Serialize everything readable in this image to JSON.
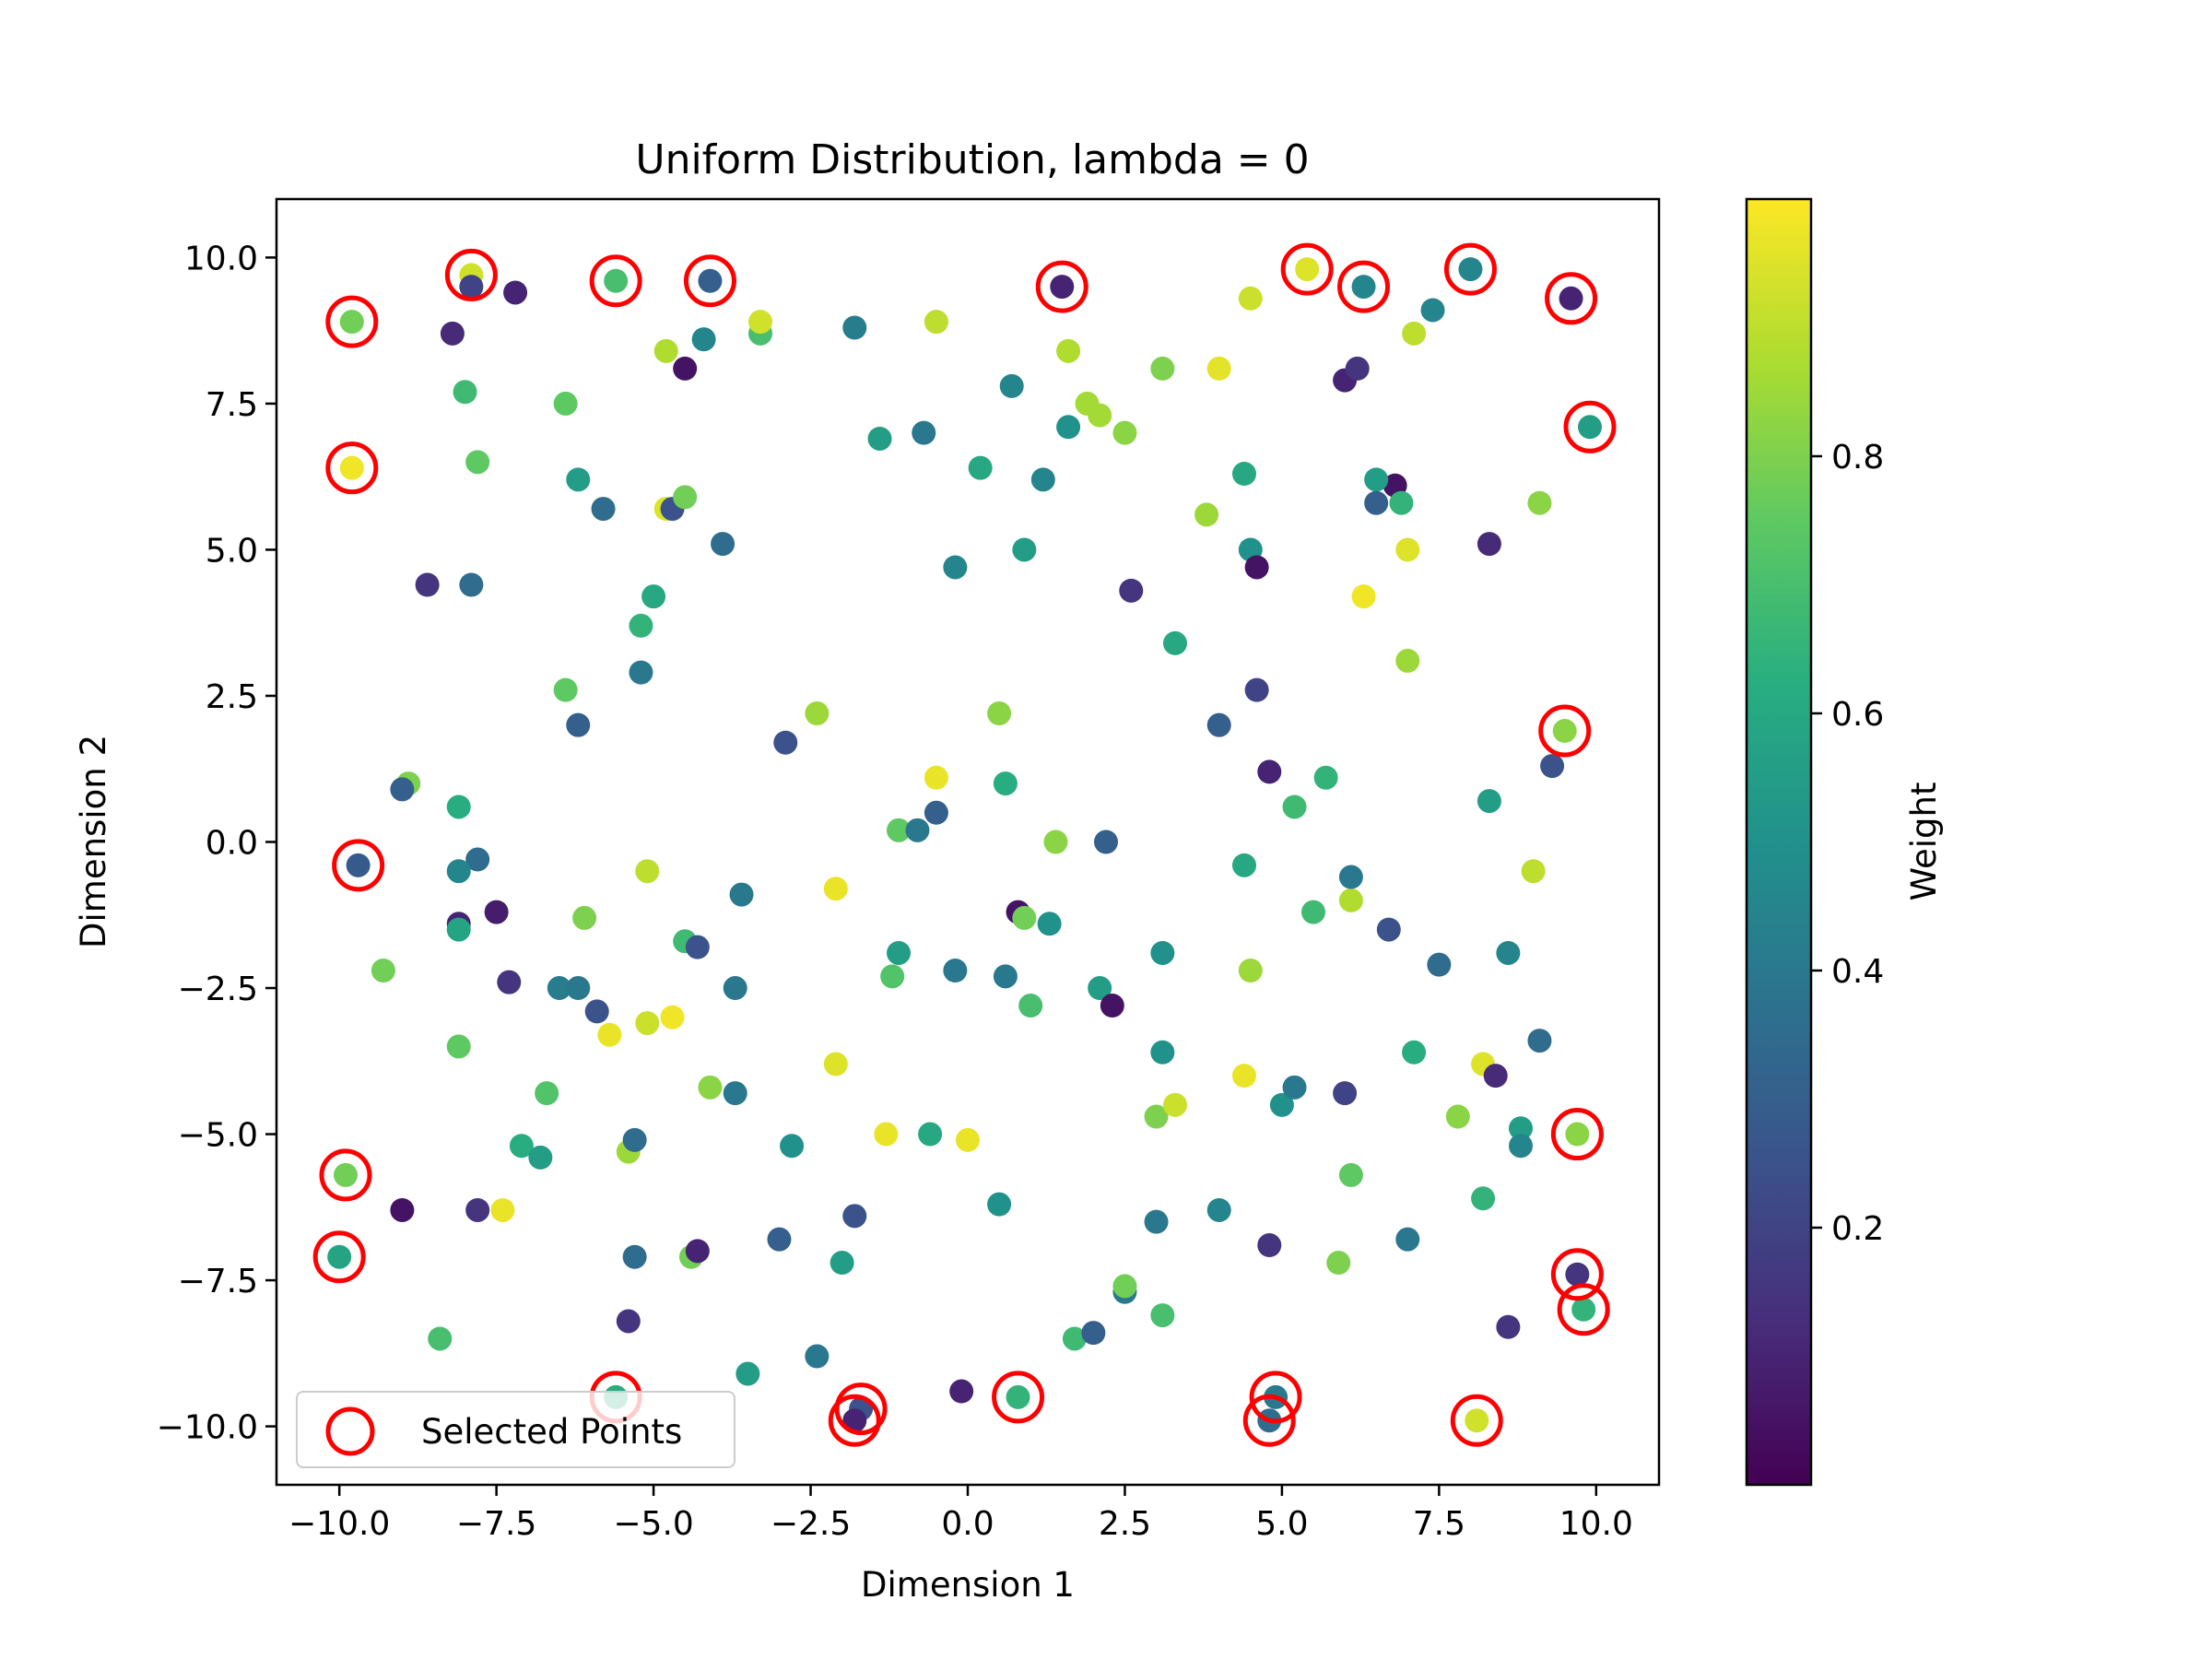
{
  "chart_data": {
    "type": "scatter",
    "title": "Uniform Distribution, lambda = 0",
    "xlabel": "Dimension 1",
    "ylabel": "Dimension 2",
    "xlim": [
      -11,
      11
    ],
    "ylim": [
      -11,
      11
    ],
    "x_ticks": [
      -10,
      -7.5,
      -5,
      -2.5,
      0,
      2.5,
      5,
      7.5,
      10
    ],
    "x_tick_labels": [
      "−10.0",
      "−7.5",
      "−5.0",
      "−2.5",
      "0.0",
      "2.5",
      "5.0",
      "7.5",
      "10.0"
    ],
    "y_ticks": [
      10,
      7.5,
      5,
      2.5,
      0,
      -2.5,
      -5,
      -7.5,
      -10
    ],
    "y_tick_labels": [
      "10.0",
      "7.5",
      "5.0",
      "2.5",
      "0.0",
      "−2.5",
      "−5.0",
      "−7.5",
      "−10.0"
    ],
    "grid": false,
    "colormap": "viridis",
    "colorbar": {
      "label": "Weight",
      "range": [
        0,
        1
      ],
      "ticks": [
        0.2,
        0.4,
        0.6,
        0.8
      ],
      "tick_labels": [
        "0.2",
        "0.4",
        "0.6",
        "0.8"
      ]
    },
    "legend": {
      "entries": [
        "Selected Points"
      ],
      "position": "lower-left"
    },
    "selected_color": "#ff0000",
    "points": [
      [
        -9.8,
        8.9,
        0.78
      ],
      [
        -7.9,
        9.7,
        0.93
      ],
      [
        -5.6,
        9.6,
        0.7
      ],
      [
        -4.1,
        9.6,
        0.3
      ],
      [
        1.5,
        9.5,
        0.1
      ],
      [
        5.4,
        9.8,
        0.95
      ],
      [
        6.3,
        9.5,
        0.45
      ],
      [
        8.0,
        9.8,
        0.45
      ],
      [
        9.6,
        9.3,
        0.1
      ],
      [
        9.9,
        7.1,
        0.55
      ],
      [
        -9.8,
        6.4,
        0.98
      ],
      [
        9.5,
        1.9,
        0.82
      ],
      [
        -9.7,
        -0.4,
        0.28
      ],
      [
        -9.9,
        -5.7,
        0.78
      ],
      [
        -10.0,
        -7.1,
        0.58
      ],
      [
        -5.6,
        -9.5,
        0.62
      ],
      [
        -1.7,
        -9.7,
        0.25
      ],
      [
        -1.8,
        -9.9,
        0.1
      ],
      [
        0.8,
        -9.5,
        0.65
      ],
      [
        4.9,
        -9.5,
        0.4
      ],
      [
        4.8,
        -9.9,
        0.35
      ],
      [
        8.1,
        -9.9,
        0.93
      ],
      [
        9.7,
        -5.0,
        0.82
      ],
      [
        9.7,
        -7.4,
        0.15
      ],
      [
        9.8,
        -8.0,
        0.65
      ],
      [
        -8.2,
        8.7,
        0.12
      ],
      [
        -7.9,
        9.5,
        0.2
      ],
      [
        -7.2,
        9.4,
        0.1
      ],
      [
        -8.0,
        7.7,
        0.68
      ],
      [
        -7.8,
        6.5,
        0.75
      ],
      [
        -6.4,
        7.5,
        0.75
      ],
      [
        -6.2,
        6.2,
        0.55
      ],
      [
        -5.8,
        5.7,
        0.35
      ],
      [
        -4.8,
        8.4,
        0.88
      ],
      [
        -4.5,
        8.1,
        0.05
      ],
      [
        -4.2,
        8.6,
        0.45
      ],
      [
        -3.3,
        8.7,
        0.7
      ],
      [
        -3.3,
        8.9,
        0.93
      ],
      [
        -1.8,
        8.8,
        0.42
      ],
      [
        -1.4,
        6.9,
        0.55
      ],
      [
        -0.7,
        7.0,
        0.4
      ],
      [
        -0.5,
        8.9,
        0.9
      ],
      [
        0.2,
        6.4,
        0.6
      ],
      [
        0.7,
        7.8,
        0.45
      ],
      [
        1.2,
        6.2,
        0.45
      ],
      [
        1.6,
        7.1,
        0.5
      ],
      [
        1.6,
        8.4,
        0.88
      ],
      [
        1.9,
        7.5,
        0.86
      ],
      [
        2.1,
        7.3,
        0.86
      ],
      [
        2.5,
        7.0,
        0.82
      ],
      [
        3.1,
        8.1,
        0.8
      ],
      [
        4.0,
        8.1,
        0.96
      ],
      [
        4.5,
        9.3,
        0.92
      ],
      [
        7.1,
        8.7,
        0.9
      ],
      [
        7.4,
        9.1,
        0.45
      ],
      [
        6.0,
        7.9,
        0.1
      ],
      [
        6.2,
        8.1,
        0.15
      ],
      [
        6.8,
        6.1,
        0.05
      ],
      [
        6.5,
        6.2,
        0.55
      ],
      [
        6.5,
        5.8,
        0.3
      ],
      [
        6.9,
        5.8,
        0.65
      ],
      [
        9.1,
        5.8,
        0.82
      ],
      [
        8.3,
        5.1,
        0.12
      ],
      [
        7.0,
        5.0,
        0.95
      ],
      [
        6.3,
        4.2,
        0.98
      ],
      [
        7.0,
        3.1,
        0.85
      ],
      [
        4.4,
        6.3,
        0.6
      ],
      [
        4.5,
        5.0,
        0.5
      ],
      [
        4.6,
        4.7,
        0.05
      ],
      [
        3.8,
        5.6,
        0.85
      ],
      [
        0.9,
        5.0,
        0.55
      ],
      [
        -0.2,
        4.7,
        0.45
      ],
      [
        -4.8,
        5.7,
        0.95
      ],
      [
        -4.7,
        5.7,
        0.25
      ],
      [
        -4.5,
        5.9,
        0.78
      ],
      [
        -3.9,
        5.1,
        0.35
      ],
      [
        -5.0,
        4.2,
        0.6
      ],
      [
        -5.2,
        3.7,
        0.65
      ],
      [
        -5.2,
        2.9,
        0.4
      ],
      [
        -6.4,
        2.6,
        0.75
      ],
      [
        -8.6,
        4.4,
        0.15
      ],
      [
        -7.9,
        4.4,
        0.35
      ],
      [
        -6.2,
        2.0,
        0.3
      ],
      [
        -2.9,
        1.7,
        0.25
      ],
      [
        -2.4,
        2.2,
        0.85
      ],
      [
        0.5,
        2.2,
        0.82
      ],
      [
        2.6,
        4.3,
        0.15
      ],
      [
        3.3,
        3.4,
        0.6
      ],
      [
        4.0,
        2.0,
        0.3
      ],
      [
        4.6,
        2.6,
        0.2
      ],
      [
        4.8,
        1.2,
        0.1
      ],
      [
        5.7,
        1.1,
        0.65
      ],
      [
        5.2,
        0.6,
        0.68
      ],
      [
        8.3,
        0.7,
        0.55
      ],
      [
        9.3,
        1.3,
        0.25
      ],
      [
        -8.9,
        1.0,
        0.8
      ],
      [
        -9.0,
        0.9,
        0.3
      ],
      [
        -8.1,
        0.6,
        0.62
      ],
      [
        -7.8,
        -0.3,
        0.35
      ],
      [
        -8.1,
        -0.5,
        0.45
      ],
      [
        -8.1,
        -1.4,
        0.1
      ],
      [
        -8.1,
        -1.5,
        0.58
      ],
      [
        -7.5,
        -1.2,
        0.08
      ],
      [
        -6.1,
        -1.3,
        0.8
      ],
      [
        -5.1,
        -0.5,
        0.9
      ],
      [
        -3.6,
        -0.9,
        0.4
      ],
      [
        -2.1,
        -0.8,
        0.97
      ],
      [
        -1.1,
        0.2,
        0.75
      ],
      [
        -0.8,
        0.2,
        0.4
      ],
      [
        -0.5,
        0.5,
        0.3
      ],
      [
        -0.5,
        1.1,
        0.97
      ],
      [
        0.6,
        1.0,
        0.62
      ],
      [
        1.4,
        0.0,
        0.82
      ],
      [
        2.2,
        0.0,
        0.3
      ],
      [
        0.8,
        -1.2,
        0.05
      ],
      [
        0.9,
        -1.3,
        0.78
      ],
      [
        1.3,
        -1.4,
        0.5
      ],
      [
        4.4,
        -0.4,
        0.6
      ],
      [
        6.1,
        -1.0,
        0.88
      ],
      [
        6.1,
        -0.6,
        0.4
      ],
      [
        6.7,
        -1.5,
        0.25
      ],
      [
        5.5,
        -1.2,
        0.68
      ],
      [
        9.0,
        -0.5,
        0.9
      ],
      [
        -9.3,
        -2.2,
        0.78
      ],
      [
        -7.3,
        -2.4,
        0.15
      ],
      [
        -6.5,
        -2.5,
        0.42
      ],
      [
        -6.2,
        -2.5,
        0.4
      ],
      [
        -5.9,
        -2.9,
        0.25
      ],
      [
        -5.7,
        -3.3,
        0.97
      ],
      [
        -5.1,
        -3.1,
        0.92
      ],
      [
        -4.7,
        -3.0,
        0.98
      ],
      [
        -4.5,
        -1.7,
        0.68
      ],
      [
        -4.3,
        -1.8,
        0.25
      ],
      [
        -3.7,
        -2.5,
        0.4
      ],
      [
        -1.2,
        -2.3,
        0.72
      ],
      [
        -1.1,
        -1.9,
        0.55
      ],
      [
        -0.2,
        -2.2,
        0.4
      ],
      [
        0.6,
        -2.3,
        0.4
      ],
      [
        1.0,
        -2.8,
        0.7
      ],
      [
        2.1,
        -2.5,
        0.55
      ],
      [
        2.3,
        -2.8,
        0.05
      ],
      [
        3.1,
        -1.9,
        0.5
      ],
      [
        4.5,
        -2.2,
        0.85
      ],
      [
        7.5,
        -2.1,
        0.35
      ],
      [
        8.6,
        -1.9,
        0.45
      ],
      [
        -8.1,
        -3.5,
        0.75
      ],
      [
        -6.7,
        -4.3,
        0.72
      ],
      [
        -7.1,
        -5.2,
        0.62
      ],
      [
        -6.8,
        -5.4,
        0.55
      ],
      [
        -5.4,
        -5.3,
        0.85
      ],
      [
        -5.3,
        -5.1,
        0.35
      ],
      [
        -4.1,
        -4.2,
        0.82
      ],
      [
        -3.7,
        -4.3,
        0.4
      ],
      [
        -2.8,
        -5.2,
        0.5
      ],
      [
        -2.1,
        -3.8,
        0.95
      ],
      [
        -1.3,
        -5.0,
        0.97
      ],
      [
        -0.6,
        -5.0,
        0.6
      ],
      [
        0.0,
        -5.1,
        0.97
      ],
      [
        3.0,
        -4.7,
        0.8
      ],
      [
        3.3,
        -4.5,
        0.92
      ],
      [
        3.1,
        -3.6,
        0.5
      ],
      [
        4.4,
        -4.0,
        0.97
      ],
      [
        5.0,
        -4.5,
        0.5
      ],
      [
        5.2,
        -4.2,
        0.4
      ],
      [
        6.0,
        -4.3,
        0.2
      ],
      [
        7.1,
        -3.6,
        0.62
      ],
      [
        7.8,
        -4.7,
        0.82
      ],
      [
        8.2,
        -3.8,
        0.95
      ],
      [
        8.4,
        -4.0,
        0.12
      ],
      [
        9.1,
        -3.4,
        0.35
      ],
      [
        8.8,
        -4.9,
        0.55
      ],
      [
        8.8,
        -5.2,
        0.45
      ],
      [
        -9.0,
        -6.3,
        0.05
      ],
      [
        -7.8,
        -6.3,
        0.15
      ],
      [
        -7.4,
        -6.3,
        0.97
      ],
      [
        -5.3,
        -7.1,
        0.35
      ],
      [
        -4.4,
        -7.1,
        0.78
      ],
      [
        -4.3,
        -7.0,
        0.1
      ],
      [
        -3.0,
        -6.8,
        0.3
      ],
      [
        -2.0,
        -7.2,
        0.55
      ],
      [
        -1.8,
        -6.4,
        0.25
      ],
      [
        0.5,
        -6.2,
        0.5
      ],
      [
        3.0,
        -6.5,
        0.4
      ],
      [
        4.0,
        -6.3,
        0.45
      ],
      [
        4.8,
        -6.9,
        0.15
      ],
      [
        5.9,
        -7.2,
        0.8
      ],
      [
        6.1,
        -5.7,
        0.75
      ],
      [
        7.0,
        -6.8,
        0.4
      ],
      [
        8.2,
        -6.1,
        0.65
      ],
      [
        -5.4,
        -8.2,
        0.15
      ],
      [
        -8.4,
        -8.5,
        0.7
      ],
      [
        -3.5,
        -9.1,
        0.55
      ],
      [
        -2.4,
        -8.8,
        0.4
      ],
      [
        -0.1,
        -9.4,
        0.1
      ],
      [
        1.7,
        -8.5,
        0.68
      ],
      [
        2.0,
        -8.4,
        0.3
      ],
      [
        2.5,
        -7.7,
        0.4
      ],
      [
        2.5,
        -7.6,
        0.78
      ],
      [
        3.1,
        -8.1,
        0.7
      ],
      [
        8.6,
        -8.3,
        0.15
      ]
    ],
    "selected": [
      [
        -9.8,
        8.9
      ],
      [
        -7.9,
        9.7
      ],
      [
        -5.6,
        9.6
      ],
      [
        -4.1,
        9.6
      ],
      [
        1.5,
        9.5
      ],
      [
        5.4,
        9.8
      ],
      [
        6.3,
        9.5
      ],
      [
        8.0,
        9.8
      ],
      [
        9.6,
        9.3
      ],
      [
        9.9,
        7.1
      ],
      [
        -9.8,
        6.4
      ],
      [
        9.5,
        1.9
      ],
      [
        -9.7,
        -0.4
      ],
      [
        -9.9,
        -5.7
      ],
      [
        -10.0,
        -7.1
      ],
      [
        -5.6,
        -9.5
      ],
      [
        -1.7,
        -9.7
      ],
      [
        -1.8,
        -9.9
      ],
      [
        0.8,
        -9.5
      ],
      [
        4.9,
        -9.5
      ],
      [
        4.8,
        -9.9
      ],
      [
        8.1,
        -9.9
      ],
      [
        9.7,
        -5.0
      ],
      [
        9.7,
        -7.4
      ],
      [
        9.8,
        -8.0
      ]
    ]
  }
}
